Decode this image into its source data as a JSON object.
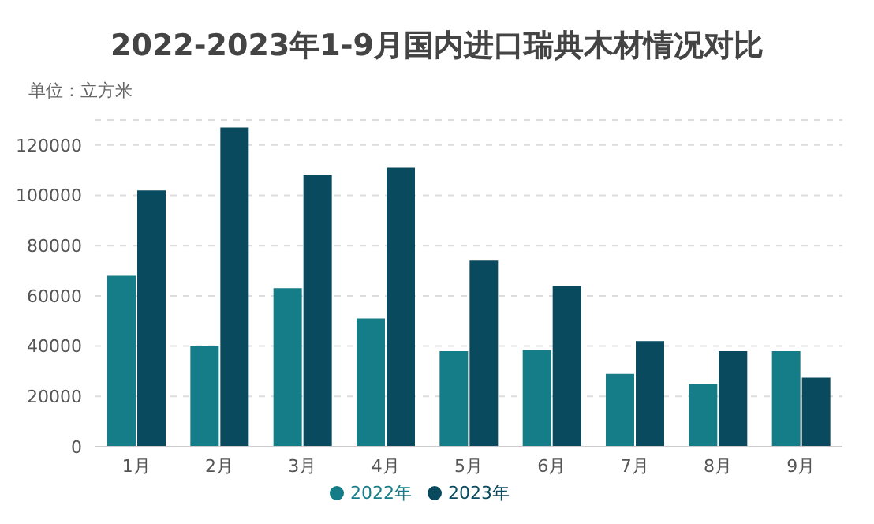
{
  "chart_data": {
    "type": "bar",
    "title": "2022-2023年1-9月国内进口瑞典木材情况对比",
    "ylabel": "单位：立方米",
    "categories": [
      "1月",
      "2月",
      "3月",
      "4月",
      "5月",
      "6月",
      "7月",
      "8月",
      "9月"
    ],
    "series": [
      {
        "name": "2022年",
        "color": "#157d87",
        "values": [
          68000,
          40000,
          63000,
          51000,
          38000,
          38500,
          29000,
          25000,
          38000
        ]
      },
      {
        "name": "2023年",
        "color": "#0a4a5e",
        "values": [
          102000,
          127000,
          108000,
          111000,
          74000,
          64000,
          42000,
          38000,
          27500
        ]
      }
    ],
    "ylim": [
      0,
      130000
    ],
    "yticks": [
      0,
      20000,
      40000,
      60000,
      80000,
      100000,
      120000
    ],
    "grid": "y",
    "legend": "bottom"
  }
}
